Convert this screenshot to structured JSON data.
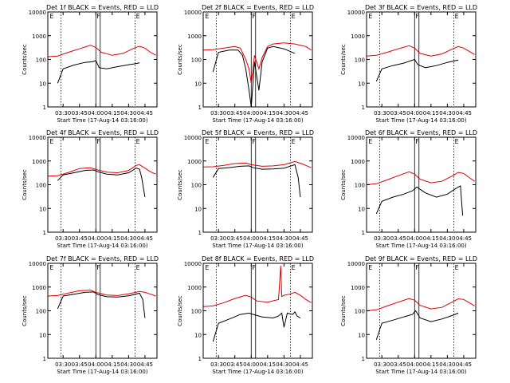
{
  "chart_data": [
    {
      "type": "line",
      "title": "Det 1f  BLACK = Events, RED = LLD",
      "xlabel": "Start Time (17-Aug-14 03:16:00)",
      "ylabel": "Counts/sec",
      "ylim": [
        1,
        10000
      ],
      "yscale": "log",
      "x_range": [
        "03:16",
        "04:56"
      ],
      "x_ticks": [
        "03:30",
        "03:45",
        "04:00",
        "04:15",
        "04:30",
        "04:45"
      ],
      "y_ticks": [
        "1",
        "10",
        "100",
        "1000",
        "10000"
      ],
      "vlines": [
        "03:28",
        "04:00",
        "04:04",
        "04:36"
      ],
      "markers": [
        {
          "label": "E",
          "x": "03:17"
        },
        {
          "label": "F",
          "x": "04:00"
        },
        {
          "label": "E",
          "x": "04:36"
        }
      ],
      "series": [
        {
          "name": "Events",
          "color": "#000000",
          "x": [
            "03:25",
            "03:30",
            "03:40",
            "03:50",
            "03:57",
            "04:00",
            "04:03",
            "04:10",
            "04:20",
            "04:30",
            "04:35",
            "04:40"
          ],
          "values": [
            10,
            40,
            58,
            75,
            80,
            90,
            45,
            40,
            50,
            60,
            65,
            72
          ]
        },
        {
          "name": "LLD",
          "color": "#dd0000",
          "x": [
            "03:16",
            "03:25",
            "03:35",
            "03:45",
            "03:55",
            "04:00",
            "04:05",
            "04:15",
            "04:25",
            "04:35",
            "04:40",
            "04:45",
            "04:50",
            "04:55"
          ],
          "values": [
            130,
            140,
            200,
            280,
            400,
            320,
            200,
            150,
            180,
            300,
            360,
            300,
            200,
            150
          ]
        }
      ]
    },
    {
      "type": "line",
      "title": "Det 2f  BLACK = Events, RED = LLD",
      "xlabel": "Start Time (17-Aug-14 03:16:00)",
      "ylabel": "Counts/sec",
      "ylim": [
        1,
        10000
      ],
      "yscale": "log",
      "x_range": [
        "03:16",
        "04:56"
      ],
      "x_ticks": [
        "03:30",
        "03:45",
        "04:00",
        "04:15",
        "04:30",
        "04:45"
      ],
      "y_ticks": [
        "1",
        "10",
        "100",
        "1000",
        "10000"
      ],
      "vlines": [
        "03:28",
        "04:00",
        "04:04",
        "04:36"
      ],
      "markers": [
        {
          "label": "E",
          "x": "03:17"
        },
        {
          "label": "F",
          "x": "04:00"
        },
        {
          "label": "E",
          "x": "04:36"
        }
      ],
      "series": [
        {
          "name": "Events",
          "color": "#000000",
          "x": [
            "03:25",
            "03:30",
            "03:40",
            "03:48",
            "03:52",
            "03:55",
            "03:58",
            "04:00",
            "04:03",
            "04:07",
            "04:10",
            "04:15",
            "04:20",
            "04:30",
            "04:40"
          ],
          "values": [
            30,
            200,
            250,
            250,
            150,
            40,
            5,
            1,
            80,
            5,
            80,
            300,
            350,
            280,
            180
          ]
        },
        {
          "name": "LLD",
          "color": "#dd0000",
          "x": [
            "03:16",
            "03:25",
            "03:35",
            "03:45",
            "03:50",
            "03:55",
            "03:58",
            "04:00",
            "04:03",
            "04:07",
            "04:10",
            "04:15",
            "04:20",
            "04:30",
            "04:40",
            "04:50",
            "04:55"
          ],
          "values": [
            250,
            260,
            300,
            350,
            300,
            100,
            40,
            10,
            150,
            40,
            120,
            350,
            450,
            500,
            450,
            350,
            250
          ]
        }
      ]
    },
    {
      "type": "line",
      "title": "Det 3f  BLACK = Events, RED = LLD",
      "xlabel": "Start Time (17-Aug-14 03:16:00)",
      "ylabel": "Counts/sec",
      "ylim": [
        1,
        10000
      ],
      "yscale": "log",
      "x_range": [
        "03:16",
        "04:56"
      ],
      "x_ticks": [
        "03:30",
        "03:45",
        "04:00",
        "04:15",
        "04:30",
        "04:45"
      ],
      "y_ticks": [
        "1",
        "10",
        "100",
        "1000",
        "10000"
      ],
      "vlines": [
        "03:28",
        "04:00",
        "04:04",
        "04:36"
      ],
      "markers": [
        {
          "label": "E",
          "x": "03:17"
        },
        {
          "label": "F",
          "x": "04:00"
        },
        {
          "label": "E",
          "x": "04:36"
        }
      ],
      "series": [
        {
          "name": "Events",
          "color": "#000000",
          "x": [
            "03:25",
            "03:30",
            "03:40",
            "03:50",
            "03:57",
            "04:00",
            "04:03",
            "04:10",
            "04:20",
            "04:30",
            "04:40"
          ],
          "values": [
            12,
            40,
            55,
            70,
            90,
            100,
            60,
            45,
            55,
            75,
            95
          ]
        },
        {
          "name": "LLD",
          "color": "#dd0000",
          "x": [
            "03:16",
            "03:25",
            "03:35",
            "03:45",
            "03:55",
            "04:00",
            "04:05",
            "04:15",
            "04:25",
            "04:35",
            "04:40",
            "04:45",
            "04:50",
            "04:55"
          ],
          "values": [
            140,
            150,
            200,
            280,
            380,
            300,
            180,
            140,
            170,
            280,
            350,
            300,
            220,
            160
          ]
        }
      ]
    },
    {
      "type": "line",
      "title": "Det 4f  BLACK = Events, RED = LLD",
      "xlabel": "Start Time (17-Aug-14 03:16:00)",
      "ylabel": "Counts/sec",
      "ylim": [
        1,
        10000
      ],
      "yscale": "log",
      "x_range": [
        "03:16",
        "04:56"
      ],
      "x_ticks": [
        "03:30",
        "03:45",
        "04:00",
        "04:15",
        "04:30",
        "04:45"
      ],
      "y_ticks": [
        "1",
        "10",
        "100",
        "1000",
        "10000"
      ],
      "vlines": [
        "03:28",
        "04:00",
        "04:04",
        "04:36"
      ],
      "markers": [
        {
          "label": "E",
          "x": "03:17"
        },
        {
          "label": "F",
          "x": "04:00"
        },
        {
          "label": "E",
          "x": "04:36"
        }
      ],
      "series": [
        {
          "name": "Events",
          "color": "#000000",
          "x": [
            "03:25",
            "03:30",
            "03:40",
            "03:50",
            "03:58",
            "04:02",
            "04:10",
            "04:20",
            "04:30",
            "04:37",
            "04:40",
            "04:42",
            "04:45"
          ],
          "values": [
            150,
            260,
            320,
            400,
            420,
            350,
            280,
            260,
            320,
            500,
            450,
            200,
            30
          ]
        },
        {
          "name": "LLD",
          "color": "#dd0000",
          "x": [
            "03:16",
            "03:25",
            "03:35",
            "03:45",
            "03:55",
            "04:00",
            "04:10",
            "04:20",
            "04:30",
            "04:37",
            "04:40",
            "04:45",
            "04:50",
            "04:55"
          ],
          "values": [
            230,
            240,
            330,
            480,
            520,
            440,
            340,
            320,
            400,
            650,
            700,
            500,
            350,
            280
          ]
        }
      ]
    },
    {
      "type": "line",
      "title": "Det 5f  BLACK = Events, RED = LLD",
      "xlabel": "Start Time (17-Aug-14 03:16:00)",
      "ylabel": "Counts/sec",
      "ylim": [
        1,
        10000
      ],
      "yscale": "log",
      "x_range": [
        "03:16",
        "04:56"
      ],
      "x_ticks": [
        "03:30",
        "03:45",
        "04:00",
        "04:15",
        "04:30",
        "04:45"
      ],
      "y_ticks": [
        "1",
        "10",
        "100",
        "1000",
        "10000"
      ],
      "vlines": [
        "03:28",
        "04:00",
        "04:04",
        "04:36"
      ],
      "markers": [
        {
          "label": "E",
          "x": "03:17"
        },
        {
          "label": "F",
          "x": "04:00"
        },
        {
          "label": "E",
          "x": "04:36"
        }
      ],
      "series": [
        {
          "name": "Events",
          "color": "#000000",
          "x": [
            "03:25",
            "03:30",
            "03:40",
            "03:50",
            "03:58",
            "04:02",
            "04:10",
            "04:20",
            "04:30",
            "04:40",
            "04:43",
            "04:45"
          ],
          "values": [
            200,
            480,
            530,
            600,
            620,
            520,
            450,
            460,
            500,
            700,
            200,
            30
          ]
        },
        {
          "name": "LLD",
          "color": "#dd0000",
          "x": [
            "03:16",
            "03:25",
            "03:35",
            "03:45",
            "03:55",
            "04:00",
            "04:10",
            "04:20",
            "04:30",
            "04:40",
            "04:45",
            "04:50",
            "04:55"
          ],
          "values": [
            560,
            570,
            650,
            780,
            820,
            700,
            600,
            620,
            700,
            950,
            800,
            650,
            520
          ]
        }
      ]
    },
    {
      "type": "line",
      "title": "Det 6f  BLACK = Events, RED = LLD",
      "xlabel": "Start Time (17-Aug-14 03:16:00)",
      "ylabel": "Counts/sec",
      "ylim": [
        1,
        10000
      ],
      "yscale": "log",
      "x_range": [
        "03:16",
        "04:56"
      ],
      "x_ticks": [
        "03:30",
        "03:45",
        "04:00",
        "04:15",
        "04:30",
        "04:45"
      ],
      "y_ticks": [
        "1",
        "10",
        "100",
        "1000",
        "10000"
      ],
      "vlines": [
        "03:28",
        "04:00",
        "04:04",
        "04:36"
      ],
      "markers": [
        {
          "label": "E",
          "x": "03:17"
        },
        {
          "label": "F",
          "x": "04:00"
        },
        {
          "label": "E",
          "x": "04:36"
        }
      ],
      "series": [
        {
          "name": "Events",
          "color": "#000000",
          "x": [
            "03:25",
            "03:30",
            "03:40",
            "03:50",
            "03:58",
            "04:02",
            "04:10",
            "04:20",
            "04:30",
            "04:38",
            "04:42",
            "04:44"
          ],
          "values": [
            6,
            20,
            30,
            40,
            55,
            80,
            45,
            30,
            40,
            70,
            90,
            5
          ]
        },
        {
          "name": "LLD",
          "color": "#dd0000",
          "x": [
            "03:16",
            "03:25",
            "03:35",
            "03:45",
            "03:55",
            "04:00",
            "04:05",
            "04:15",
            "04:25",
            "04:35",
            "04:40",
            "04:45",
            "04:50",
            "04:55"
          ],
          "values": [
            100,
            110,
            160,
            240,
            350,
            280,
            170,
            120,
            140,
            240,
            330,
            300,
            200,
            140
          ]
        }
      ]
    },
    {
      "type": "line",
      "title": "Det 7f  BLACK = Events, RED = LLD",
      "xlabel": "Start Time (17-Aug-14 03:16:00)",
      "ylabel": "Counts/sec",
      "ylim": [
        1,
        10000
      ],
      "yscale": "log",
      "x_range": [
        "03:16",
        "04:56"
      ],
      "x_ticks": [
        "03:30",
        "03:45",
        "04:00",
        "04:15",
        "04:30",
        "04:45"
      ],
      "y_ticks": [
        "1",
        "10",
        "100",
        "1000",
        "10000"
      ],
      "vlines": [
        "03:28",
        "04:00",
        "04:04",
        "04:36"
      ],
      "markers": [
        {
          "label": "E",
          "x": "03:17"
        },
        {
          "label": "F",
          "x": "04:00"
        },
        {
          "label": "E",
          "x": "04:36"
        }
      ],
      "series": [
        {
          "name": "Events",
          "color": "#000000",
          "x": [
            "03:25",
            "03:30",
            "03:40",
            "03:50",
            "03:58",
            "04:02",
            "04:10",
            "04:20",
            "04:30",
            "04:40",
            "04:43",
            "04:45"
          ],
          "values": [
            120,
            420,
            500,
            600,
            620,
            480,
            390,
            380,
            430,
            550,
            300,
            50
          ]
        },
        {
          "name": "LLD",
          "color": "#dd0000",
          "x": [
            "03:16",
            "03:25",
            "03:35",
            "03:45",
            "03:55",
            "04:00",
            "04:10",
            "04:20",
            "04:30",
            "04:40",
            "04:45",
            "04:50",
            "04:55"
          ],
          "values": [
            420,
            440,
            560,
            700,
            740,
            600,
            460,
            440,
            520,
            650,
            600,
            500,
            420
          ]
        }
      ]
    },
    {
      "type": "line",
      "title": "Det 8f  BLACK = Events, RED = LLD",
      "xlabel": "Start Time (17-Aug-14 03:16:00)",
      "ylabel": "Counts/sec",
      "ylim": [
        1,
        10000
      ],
      "yscale": "log",
      "x_range": [
        "03:16",
        "04:56"
      ],
      "x_ticks": [
        "03:30",
        "03:45",
        "04:00",
        "04:15",
        "04:30",
        "04:45"
      ],
      "y_ticks": [
        "1",
        "10",
        "100",
        "1000",
        "10000"
      ],
      "vlines": [
        "03:28",
        "04:00",
        "04:04",
        "04:36"
      ],
      "markers": [
        {
          "label": "E",
          "x": "03:17"
        },
        {
          "label": "F",
          "x": "04:00"
        },
        {
          "label": "E",
          "x": "04:36"
        }
      ],
      "series": [
        {
          "name": "Events",
          "color": "#000000",
          "x": [
            "03:25",
            "03:30",
            "03:40",
            "03:50",
            "03:58",
            "04:02",
            "04:10",
            "04:20",
            "04:25",
            "04:28",
            "04:30",
            "04:33",
            "04:38",
            "04:40",
            "04:42",
            "04:45"
          ],
          "values": [
            5,
            30,
            45,
            70,
            80,
            70,
            55,
            50,
            60,
            80,
            20,
            80,
            70,
            90,
            60,
            50
          ]
        },
        {
          "name": "LLD",
          "color": "#dd0000",
          "x": [
            "03:16",
            "03:25",
            "03:35",
            "03:45",
            "03:55",
            "04:00",
            "04:05",
            "04:15",
            "04:25",
            "04:27",
            "04:28",
            "04:30",
            "04:35",
            "04:40",
            "04:45",
            "04:50",
            "04:55"
          ],
          "values": [
            150,
            160,
            220,
            330,
            450,
            380,
            260,
            230,
            300,
            8000,
            400,
            450,
            500,
            600,
            450,
            300,
            220
          ]
        }
      ]
    },
    {
      "type": "line",
      "title": "Det 9f  BLACK = Events, RED = LLD",
      "xlabel": "Start Time (17-Aug-14 03:16:00)",
      "ylabel": "Counts/sec",
      "ylim": [
        1,
        10000
      ],
      "yscale": "log",
      "x_range": [
        "03:16",
        "04:56"
      ],
      "x_ticks": [
        "03:30",
        "03:45",
        "04:00",
        "04:15",
        "04:30",
        "04:45"
      ],
      "y_ticks": [
        "1",
        "10",
        "100",
        "1000",
        "10000"
      ],
      "vlines": [
        "03:28",
        "04:00",
        "04:04",
        "04:36"
      ],
      "markers": [
        {
          "label": "E",
          "x": "03:17"
        },
        {
          "label": "F",
          "x": "04:00"
        },
        {
          "label": "E",
          "x": "04:36"
        }
      ],
      "series": [
        {
          "name": "Events",
          "color": "#000000",
          "x": [
            "03:25",
            "03:30",
            "03:40",
            "03:50",
            "03:58",
            "04:01",
            "04:05",
            "04:15",
            "04:25",
            "04:35",
            "04:40"
          ],
          "values": [
            6,
            30,
            40,
            55,
            70,
            100,
            50,
            35,
            45,
            65,
            80
          ]
        },
        {
          "name": "LLD",
          "color": "#dd0000",
          "x": [
            "03:16",
            "03:25",
            "03:35",
            "03:45",
            "03:55",
            "04:00",
            "04:05",
            "04:15",
            "04:25",
            "04:35",
            "04:40",
            "04:45",
            "04:50",
            "04:55"
          ],
          "values": [
            100,
            110,
            160,
            230,
            330,
            280,
            170,
            120,
            140,
            240,
            320,
            300,
            220,
            160
          ]
        }
      ]
    }
  ]
}
